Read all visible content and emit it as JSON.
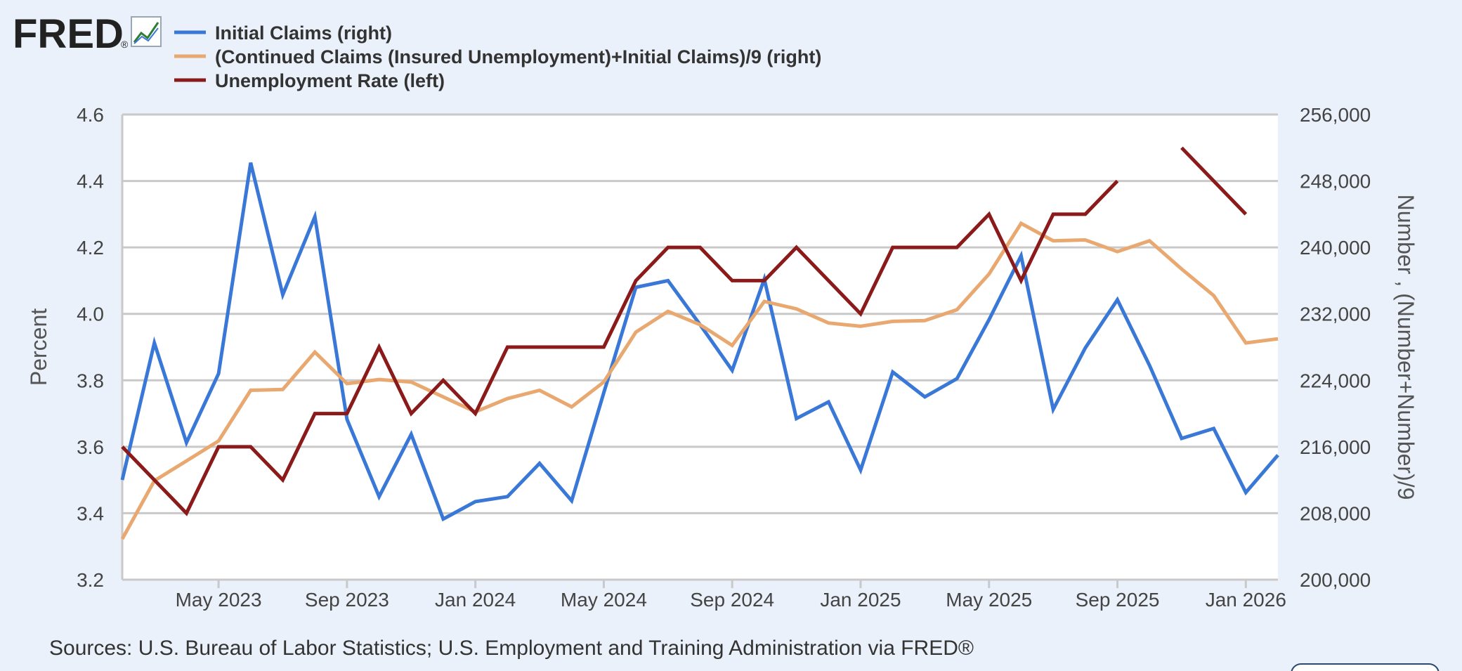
{
  "logo": {
    "text": "FRED",
    "mark": "®"
  },
  "legend": [
    {
      "label": "Initial Claims (right)",
      "color": "#3a78d8"
    },
    {
      "label": "(Continued Claims (Insured Unemployment)+Initial Claims)/9 (right)",
      "color": "#e8a870"
    },
    {
      "label": "Unemployment Rate (left)",
      "color": "#8b1a1a"
    }
  ],
  "source": "Sources: U.S. Bureau of Labor Statistics; U.S. Employment and Training Administration via FRED®",
  "chart_data": {
    "type": "line",
    "x_tick_labels": [
      "May 2023",
      "Sep 2023",
      "Jan 2024",
      "May 2024",
      "Sep 2024",
      "Jan 2025",
      "May 2025",
      "Sep 2025",
      "Jan 2026"
    ],
    "x_range": [
      "2023-02",
      "2026-02"
    ],
    "left_axis": {
      "label": "Percent",
      "range": [
        3.2,
        4.6
      ],
      "ticks": [
        "3.2",
        "3.4",
        "3.6",
        "3.8",
        "4.0",
        "4.2",
        "4.4",
        "4.6"
      ]
    },
    "right_axis": {
      "label": "Number , (Number+Number)/9",
      "range": [
        200000,
        256000
      ],
      "ticks": [
        "200,000",
        "208,000",
        "216,000",
        "224,000",
        "232,000",
        "240,000",
        "248,000",
        "256,000"
      ]
    },
    "grid": true,
    "legend_position": "top-left",
    "series": [
      {
        "name": "Initial Claims (right)",
        "axis": "right",
        "color": "#3a78d8",
        "x": [
          "2023-02",
          "2023-03",
          "2023-04",
          "2023-05",
          "2023-06",
          "2023-07",
          "2023-08",
          "2023-09",
          "2023-10",
          "2023-11",
          "2023-12",
          "2024-01",
          "2024-02",
          "2024-03",
          "2024-04",
          "2024-05",
          "2024-06",
          "2024-07",
          "2024-08",
          "2024-09",
          "2024-10",
          "2024-11",
          "2024-12",
          "2025-01",
          "2025-02",
          "2025-03",
          "2025-04",
          "2025-05",
          "2025-06",
          "2025-07",
          "2025-08",
          "2025-09",
          "2025-10",
          "2025-11",
          "2025-12",
          "2026-01",
          "2026-02"
        ],
        "values": [
          212000,
          228500,
          216500,
          224800,
          250200,
          234300,
          243700,
          219300,
          210000,
          217500,
          207300,
          209400,
          210000,
          214000,
          209500,
          222500,
          235200,
          236000,
          230700,
          225200,
          236200,
          219400,
          221400,
          213200,
          225000,
          222000,
          224200,
          231300,
          239000,
          220500,
          227900,
          233700,
          225800,
          217000,
          218200,
          210500,
          215000
        ]
      },
      {
        "name": "(Continued Claims (Insured Unemployment)+Initial Claims)/9 (right)",
        "axis": "right",
        "color": "#e8a870",
        "x": [
          "2023-02",
          "2023-03",
          "2023-04",
          "2023-05",
          "2023-06",
          "2023-07",
          "2023-08",
          "2023-09",
          "2023-10",
          "2023-11",
          "2023-12",
          "2024-01",
          "2024-02",
          "2024-03",
          "2024-04",
          "2024-05",
          "2024-06",
          "2024-07",
          "2024-08",
          "2024-09",
          "2024-10",
          "2024-11",
          "2024-12",
          "2025-01",
          "2025-02",
          "2025-03",
          "2025-04",
          "2025-05",
          "2025-06",
          "2025-07",
          "2025-08",
          "2025-09",
          "2025-10",
          "2025-11",
          "2025-12",
          "2026-01",
          "2026-02"
        ],
        "values": [
          204900,
          211900,
          214300,
          216700,
          222800,
          222900,
          227400,
          223600,
          224100,
          223800,
          222000,
          220200,
          221800,
          222800,
          220800,
          223800,
          229800,
          232300,
          230700,
          228200,
          233500,
          232600,
          230900,
          230500,
          231100,
          231200,
          232500,
          236800,
          242900,
          240800,
          240900,
          239500,
          240800,
          237400,
          234200,
          228500,
          229000
        ]
      },
      {
        "name": "Unemployment Rate (left)",
        "axis": "left",
        "color": "#8b1a1a",
        "x": [
          "2023-02",
          "2023-03",
          "2023-04",
          "2023-05",
          "2023-06",
          "2023-07",
          "2023-08",
          "2023-09",
          "2023-10",
          "2023-11",
          "2023-12",
          "2024-01",
          "2024-02",
          "2024-03",
          "2024-04",
          "2024-05",
          "2024-06",
          "2024-07",
          "2024-08",
          "2024-09",
          "2024-10",
          "2024-11",
          "2024-12",
          "2025-01",
          "2025-02",
          "2025-03",
          "2025-04",
          "2025-05",
          "2025-06",
          "2025-07",
          "2025-08",
          "2025-09",
          "2025-10",
          "2025-11",
          "2025-12",
          "2026-01",
          "2026-02"
        ],
        "values": [
          3.6,
          3.5,
          3.4,
          3.6,
          3.6,
          3.5,
          3.7,
          3.7,
          3.9,
          3.7,
          3.8,
          3.7,
          3.9,
          3.9,
          3.9,
          3.9,
          4.1,
          4.2,
          4.2,
          4.1,
          4.1,
          4.2,
          4.1,
          4.0,
          4.2,
          4.2,
          4.2,
          4.3,
          4.1,
          4.3,
          4.3,
          4.4,
          null,
          4.5,
          4.4,
          4.3,
          null
        ]
      }
    ]
  }
}
